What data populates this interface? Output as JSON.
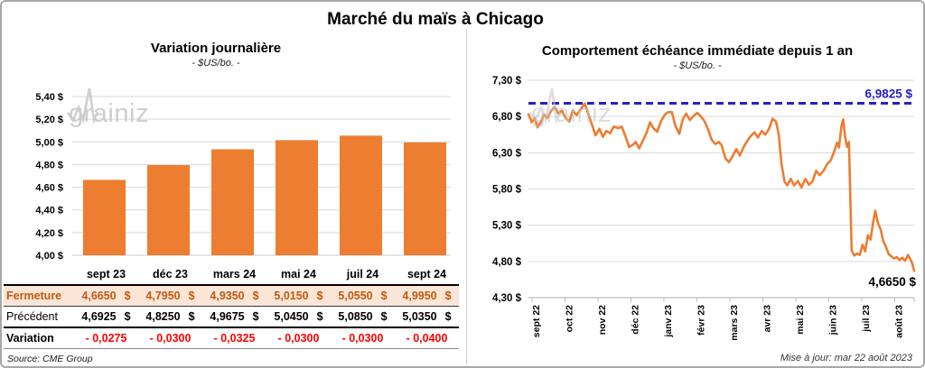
{
  "title": "Marché du maïs à Chicago",
  "colors": {
    "orange": "#ED7D31",
    "blue": "#2222CC",
    "red": "#FF0000",
    "brown": "#C05A11",
    "peach": "#FBE5D6",
    "grid": "#D9D9D9",
    "axis": "#BFBFBF",
    "watermark": "#C3C3C3"
  },
  "watermark_text": {
    "part1": "grain",
    "part2": "iz"
  },
  "left_chart": {
    "title": "Variation journalière",
    "subtitle": "- $US/bo. -"
  },
  "right_chart": {
    "title": "Comportement échéance immédiate depuis 1 an",
    "subtitle": "- $US/bo. -",
    "high_label": "6,9825 $",
    "last_label": "4,6650 $",
    "update_note": "Mise à jour: mar 22 août 2023"
  },
  "table": {
    "columns": [
      "sept 23",
      "déc 23",
      "mars 24",
      "mai 24",
      "juil 24",
      "sept 24"
    ],
    "rows": [
      {
        "label": "Fermeture",
        "style": "close",
        "unit": "$",
        "values": [
          "4,6650",
          "4,7950",
          "4,9350",
          "5,0150",
          "5,0550",
          "4,9950"
        ]
      },
      {
        "label": "Précédent",
        "style": "previous",
        "unit": "$",
        "values": [
          "4,6925",
          "4,8250",
          "4,9675",
          "5,0450",
          "5,0850",
          "5,0350"
        ]
      },
      {
        "label": "Variation",
        "style": "variation",
        "unit": "",
        "values": [
          "- 0,0275",
          "- 0,0300",
          "- 0,0325",
          "- 0,0300",
          "- 0,0300",
          "- 0,0400"
        ]
      }
    ],
    "source": "Source: CME Group"
  },
  "chart_data": [
    {
      "type": "bar",
      "title": "Variation journalière",
      "ylabel": "$US/bo.",
      "categories": [
        "sept 23",
        "déc 23",
        "mars 24",
        "mai 24",
        "juil 24",
        "sept 24"
      ],
      "values": [
        4.665,
        4.795,
        4.935,
        5.015,
        5.055,
        4.995
      ],
      "ylim": [
        4.0,
        5.4
      ],
      "ytick_step": 0.2,
      "y_tick_labels": [
        "5,40 $",
        "5,20 $",
        "5,00 $",
        "4,80 $",
        "4,60 $",
        "4,40 $",
        "4,20 $",
        "4,00 $"
      ],
      "grid": true,
      "legend": "none"
    },
    {
      "type": "line",
      "title": "Comportement échéance immédiate depuis 1 an",
      "ylabel": "$US/bo.",
      "ylim": [
        4.3,
        7.3
      ],
      "ytick_step": 0.5,
      "y_tick_labels": [
        "7,30 $",
        "6,80 $",
        "6,30 $",
        "5,80 $",
        "5,30 $",
        "4,80 $",
        "4,30 $"
      ],
      "x_labels": [
        "sept 22",
        "oct 22",
        "nov 22",
        "déc 22",
        "janv 23",
        "févr 23",
        "mars 23",
        "avr 23",
        "mai 23",
        "juin 23",
        "juil 23",
        "août 23"
      ],
      "high_line": 6.9825,
      "last_value": 4.665,
      "grid": true,
      "legend": "none",
      "points": [
        [
          0,
          6.83
        ],
        [
          0.009,
          6.72
        ],
        [
          0.016,
          6.78
        ],
        [
          0.024,
          6.65
        ],
        [
          0.033,
          6.73
        ],
        [
          0.04,
          6.83
        ],
        [
          0.049,
          6.78
        ],
        [
          0.059,
          6.88
        ],
        [
          0.068,
          6.93
        ],
        [
          0.078,
          6.84
        ],
        [
          0.087,
          6.88
        ],
        [
          0.096,
          6.78
        ],
        [
          0.106,
          6.73
        ],
        [
          0.115,
          6.88
        ],
        [
          0.125,
          6.82
        ],
        [
          0.134,
          6.89
        ],
        [
          0.146,
          6.98
        ],
        [
          0.155,
          6.84
        ],
        [
          0.165,
          6.68
        ],
        [
          0.174,
          6.54
        ],
        [
          0.184,
          6.63
        ],
        [
          0.193,
          6.52
        ],
        [
          0.202,
          6.6
        ],
        [
          0.212,
          6.57
        ],
        [
          0.221,
          6.66
        ],
        [
          0.233,
          6.64
        ],
        [
          0.242,
          6.66
        ],
        [
          0.252,
          6.52
        ],
        [
          0.261,
          6.38
        ],
        [
          0.271,
          6.41
        ],
        [
          0.278,
          6.45
        ],
        [
          0.287,
          6.36
        ],
        [
          0.296,
          6.46
        ],
        [
          0.306,
          6.57
        ],
        [
          0.315,
          6.72
        ],
        [
          0.325,
          6.63
        ],
        [
          0.334,
          6.59
        ],
        [
          0.344,
          6.74
        ],
        [
          0.353,
          6.82
        ],
        [
          0.362,
          6.86
        ],
        [
          0.372,
          6.86
        ],
        [
          0.381,
          6.67
        ],
        [
          0.391,
          6.56
        ],
        [
          0.4,
          6.76
        ],
        [
          0.409,
          6.84
        ],
        [
          0.419,
          6.75
        ],
        [
          0.428,
          6.81
        ],
        [
          0.438,
          6.85
        ],
        [
          0.447,
          6.8
        ],
        [
          0.456,
          6.74
        ],
        [
          0.466,
          6.62
        ],
        [
          0.475,
          6.48
        ],
        [
          0.485,
          6.42
        ],
        [
          0.494,
          6.45
        ],
        [
          0.501,
          6.4
        ],
        [
          0.511,
          6.22
        ],
        [
          0.52,
          6.17
        ],
        [
          0.529,
          6.25
        ],
        [
          0.539,
          6.35
        ],
        [
          0.548,
          6.26
        ],
        [
          0.558,
          6.38
        ],
        [
          0.567,
          6.46
        ],
        [
          0.576,
          6.53
        ],
        [
          0.586,
          6.58
        ],
        [
          0.595,
          6.51
        ],
        [
          0.605,
          6.6
        ],
        [
          0.614,
          6.55
        ],
        [
          0.624,
          6.63
        ],
        [
          0.633,
          6.77
        ],
        [
          0.642,
          6.73
        ],
        [
          0.649,
          6.55
        ],
        [
          0.656,
          6.15
        ],
        [
          0.664,
          5.9
        ],
        [
          0.671,
          5.85
        ],
        [
          0.68,
          5.94
        ],
        [
          0.689,
          5.85
        ],
        [
          0.699,
          5.91
        ],
        [
          0.708,
          5.82
        ],
        [
          0.718,
          5.94
        ],
        [
          0.727,
          5.86
        ],
        [
          0.736,
          5.9
        ],
        [
          0.746,
          6.05
        ],
        [
          0.755,
          5.99
        ],
        [
          0.765,
          6.05
        ],
        [
          0.774,
          6.14
        ],
        [
          0.784,
          6.2
        ],
        [
          0.793,
          6.32
        ],
        [
          0.8,
          6.44
        ],
        [
          0.805,
          6.37
        ],
        [
          0.812,
          6.68
        ],
        [
          0.816,
          6.76
        ],
        [
          0.821,
          6.52
        ],
        [
          0.826,
          6.38
        ],
        [
          0.831,
          6.45
        ],
        [
          0.838,
          4.95
        ],
        [
          0.845,
          4.88
        ],
        [
          0.852,
          4.91
        ],
        [
          0.859,
          4.89
        ],
        [
          0.866,
          5.03
        ],
        [
          0.873,
          4.94
        ],
        [
          0.88,
          5.16
        ],
        [
          0.887,
          5.1
        ],
        [
          0.894,
          5.35
        ],
        [
          0.899,
          5.5
        ],
        [
          0.906,
          5.33
        ],
        [
          0.913,
          5.24
        ],
        [
          0.92,
          5.08
        ],
        [
          0.927,
          5.0
        ],
        [
          0.934,
          4.9
        ],
        [
          0.941,
          4.87
        ],
        [
          0.948,
          4.84
        ],
        [
          0.955,
          4.86
        ],
        [
          0.962,
          4.82
        ],
        [
          0.969,
          4.85
        ],
        [
          0.976,
          4.81
        ],
        [
          0.984,
          4.89
        ],
        [
          0.991,
          4.82
        ],
        [
          0.995,
          4.77
        ],
        [
          1,
          4.67
        ]
      ]
    }
  ]
}
